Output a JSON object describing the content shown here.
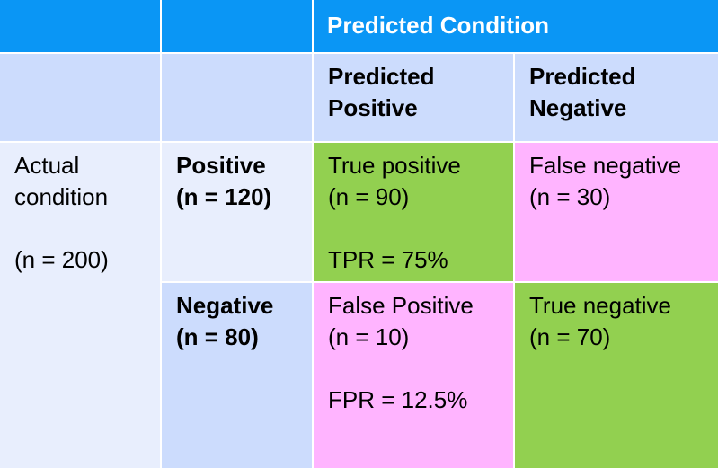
{
  "header": {
    "title": "Predicted Condition"
  },
  "columns": [
    {
      "lines": [
        "Predicted",
        "Positive"
      ]
    },
    {
      "lines": [
        "Predicted",
        "Negative"
      ]
    }
  ],
  "actual": {
    "lines": [
      "Actual",
      "condition"
    ],
    "total": "(n = 200)"
  },
  "rows": [
    {
      "lines": [
        "Positive",
        "(n = 120)"
      ],
      "cells": [
        {
          "lines": [
            "True positive",
            "(n = 90)"
          ],
          "metric": "TPR = 75%"
        },
        {
          "lines": [
            "False negative",
            "(n = 30)"
          ]
        }
      ]
    },
    {
      "lines": [
        "Negative",
        "(n = 80)"
      ],
      "cells": [
        {
          "lines": [
            "False Positive",
            "(n = 10)"
          ],
          "metric": "FPR = 12.5%"
        },
        {
          "lines": [
            "True negative",
            "(n = 70)"
          ]
        }
      ]
    }
  ]
}
